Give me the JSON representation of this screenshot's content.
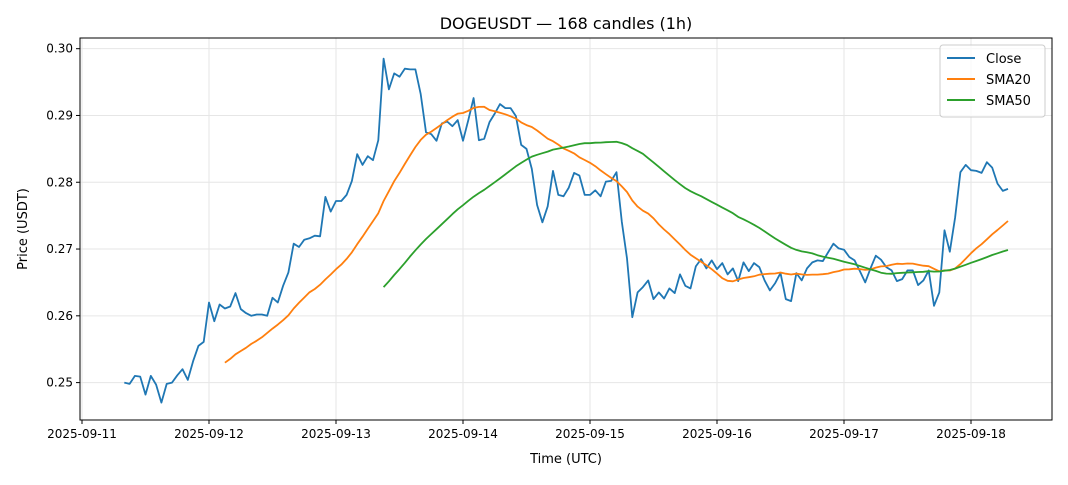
{
  "chart_data": {
    "type": "line",
    "title": "DOGEUSDT — 168 candles (1h)",
    "xlabel": "Time (UTC)",
    "ylabel": "Price (USDT)",
    "start_time": "2025-09-11 08:00",
    "interval_hours": 1,
    "xlim_days": [
      "2025-09-10 22:45",
      "2025-09-18 16:10"
    ],
    "ylim": [
      0.2444,
      0.3016
    ],
    "x_ticks": [
      "2025-09-11",
      "2025-09-12",
      "2025-09-13",
      "2025-09-14",
      "2025-09-15",
      "2025-09-16",
      "2025-09-17",
      "2025-09-18"
    ],
    "y_ticks": [
      0.25,
      0.26,
      0.27,
      0.28,
      0.29,
      0.3
    ],
    "y_tick_labels": [
      "0.25",
      "0.26",
      "0.27",
      "0.28",
      "0.29",
      "0.30"
    ],
    "grid": true,
    "legend_position": "top-right",
    "series": [
      {
        "name": "Close",
        "color": "#1f77b4",
        "values": [
          0.25,
          0.2498,
          0.251,
          0.2509,
          0.2482,
          0.251,
          0.2497,
          0.247,
          0.2498,
          0.25,
          0.2511,
          0.252,
          0.2504,
          0.2532,
          0.2555,
          0.2561,
          0.262,
          0.2592,
          0.2617,
          0.2611,
          0.2614,
          0.2634,
          0.261,
          0.2604,
          0.26,
          0.2602,
          0.2602,
          0.26,
          0.2627,
          0.262,
          0.2645,
          0.2665,
          0.2708,
          0.2703,
          0.2714,
          0.2716,
          0.272,
          0.2719,
          0.2778,
          0.2756,
          0.2772,
          0.2772,
          0.2781,
          0.2802,
          0.2842,
          0.2826,
          0.2839,
          0.2833,
          0.2863,
          0.2985,
          0.2939,
          0.2963,
          0.2958,
          0.297,
          0.2969,
          0.2969,
          0.2932,
          0.2875,
          0.2872,
          0.2862,
          0.2888,
          0.2891,
          0.2884,
          0.2893,
          0.2862,
          0.2893,
          0.2926,
          0.2863,
          0.2865,
          0.289,
          0.2903,
          0.2917,
          0.2911,
          0.2911,
          0.2899,
          0.2856,
          0.285,
          0.282,
          0.2766,
          0.274,
          0.2764,
          0.2817,
          0.2781,
          0.2779,
          0.2792,
          0.2814,
          0.281,
          0.2781,
          0.2781,
          0.2788,
          0.2779,
          0.2801,
          0.2802,
          0.2815,
          0.2741,
          0.2686,
          0.2598,
          0.2635,
          0.2643,
          0.2653,
          0.2625,
          0.2635,
          0.2626,
          0.2641,
          0.2634,
          0.2662,
          0.2645,
          0.2641,
          0.2674,
          0.2685,
          0.2671,
          0.2683,
          0.267,
          0.2679,
          0.2662,
          0.2671,
          0.2652,
          0.268,
          0.2667,
          0.2679,
          0.2673,
          0.2653,
          0.2638,
          0.2649,
          0.2664,
          0.2625,
          0.2622,
          0.2664,
          0.2653,
          0.2671,
          0.268,
          0.2683,
          0.2682,
          0.2695,
          0.2708,
          0.2701,
          0.2699,
          0.2688,
          0.2683,
          0.2667,
          0.265,
          0.2671,
          0.269,
          0.2684,
          0.2673,
          0.2668,
          0.2652,
          0.2655,
          0.2668,
          0.2668,
          0.2646,
          0.2653,
          0.2668,
          0.2615,
          0.2635,
          0.2728,
          0.2696,
          0.2747,
          0.2815,
          0.2826,
          0.2818,
          0.2817,
          0.2814,
          0.283,
          0.2822,
          0.2798,
          0.2787,
          0.279
        ]
      },
      {
        "name": "SMA20",
        "color": "#ff7f0e",
        "window": 20
      },
      {
        "name": "SMA50",
        "color": "#2ca02c",
        "window": 50
      }
    ]
  }
}
